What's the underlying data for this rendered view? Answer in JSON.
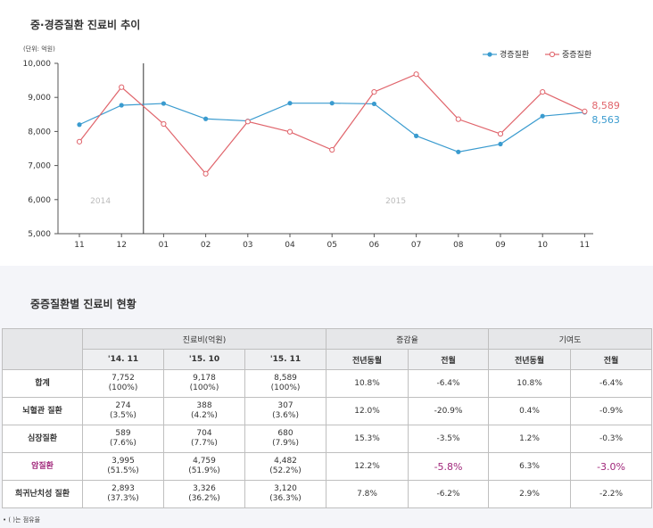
{
  "chart": {
    "title": "중·경증질환 진료비 추이",
    "unit": "(단위: 억원)"
  },
  "chart_data": {
    "type": "line",
    "title": "중·경증질환 진료비 추이",
    "categories": [
      "11",
      "12",
      "01",
      "02",
      "03",
      "04",
      "05",
      "06",
      "07",
      "08",
      "09",
      "10",
      "11"
    ],
    "year_labels": [
      {
        "label": "2014",
        "at": "12"
      },
      {
        "label": "2015",
        "at": "07"
      }
    ],
    "series": [
      {
        "name": "경증질환",
        "color": "#3a9bcf",
        "marker": "filled-circle",
        "values": [
          8200,
          8770,
          8820,
          8370,
          8310,
          8830,
          8830,
          8810,
          7870,
          7400,
          7630,
          8450,
          8563
        ]
      },
      {
        "name": "중증질환",
        "color": "#e0646b",
        "marker": "open-circle",
        "values": [
          7700,
          9300,
          8220,
          6760,
          8290,
          7990,
          7460,
          9160,
          9680,
          8360,
          7930,
          9160,
          8589
        ]
      }
    ],
    "end_labels": [
      {
        "series": "중증질환",
        "text": "8,589",
        "color": "#e0646b"
      },
      {
        "series": "경증질환",
        "text": "8,563",
        "color": "#3a9bcf"
      }
    ],
    "yticks": [
      "10,000",
      "9,000",
      "8,000",
      "7,000",
      "6,000",
      "5,000"
    ],
    "ylim": [
      5000,
      10000
    ],
    "legend_position": "top-right",
    "grid": false,
    "divider_after": "12"
  },
  "table": {
    "title": "중증질환별 진료비 현황",
    "group_headers": [
      "진료비(억원)",
      "증감율",
      "기여도"
    ],
    "sub_headers": [
      "'14. 11",
      "'15. 10",
      "'15. 11",
      "전년동월",
      "전월",
      "전년동월",
      "전월"
    ],
    "rows": [
      {
        "label": "합계",
        "c1": "7,752",
        "c1p": "(100%)",
        "c2": "9,178",
        "c2p": "(100%)",
        "c3": "8,589",
        "c3p": "(100%)",
        "g1": "10.8%",
        "g2": "-6.4%",
        "k1": "10.8%",
        "k2": "-6.4%"
      },
      {
        "label": "뇌혈관 질환",
        "c1": "274",
        "c1p": "(3.5%)",
        "c2": "388",
        "c2p": "(4.2%)",
        "c3": "307",
        "c3p": "(3.6%)",
        "g1": "12.0%",
        "g2": "-20.9%",
        "k1": "0.4%",
        "k2": "-0.9%"
      },
      {
        "label": "심장질환",
        "c1": "589",
        "c1p": "(7.6%)",
        "c2": "704",
        "c2p": "(7.7%)",
        "c3": "680",
        "c3p": "(7.9%)",
        "g1": "15.3%",
        "g2": "-3.5%",
        "k1": "1.2%",
        "k2": "-0.3%"
      },
      {
        "label": "암질환",
        "c1": "3,995",
        "c1p": "(51.5%)",
        "c2": "4,759",
        "c2p": "(51.9%)",
        "c3": "4,482",
        "c3p": "(52.2%)",
        "g1": "12.2%",
        "g2": "-5.8%",
        "k1": "6.3%",
        "k2": "-3.0%"
      },
      {
        "label": "희귀난치성 질환",
        "c1": "2,893",
        "c1p": "(37.3%)",
        "c2": "3,326",
        "c2p": "(36.2%)",
        "c3": "3,120",
        "c3p": "(36.3%)",
        "g1": "7.8%",
        "g2": "-6.2%",
        "k1": "2.9%",
        "k2": "-2.2%"
      }
    ],
    "footnote": "• (       )는 점유율"
  },
  "colors": {
    "accent": "#a0267a",
    "header_bg": "#e6e7e9",
    "panel_bg": "#f4f5f9"
  }
}
